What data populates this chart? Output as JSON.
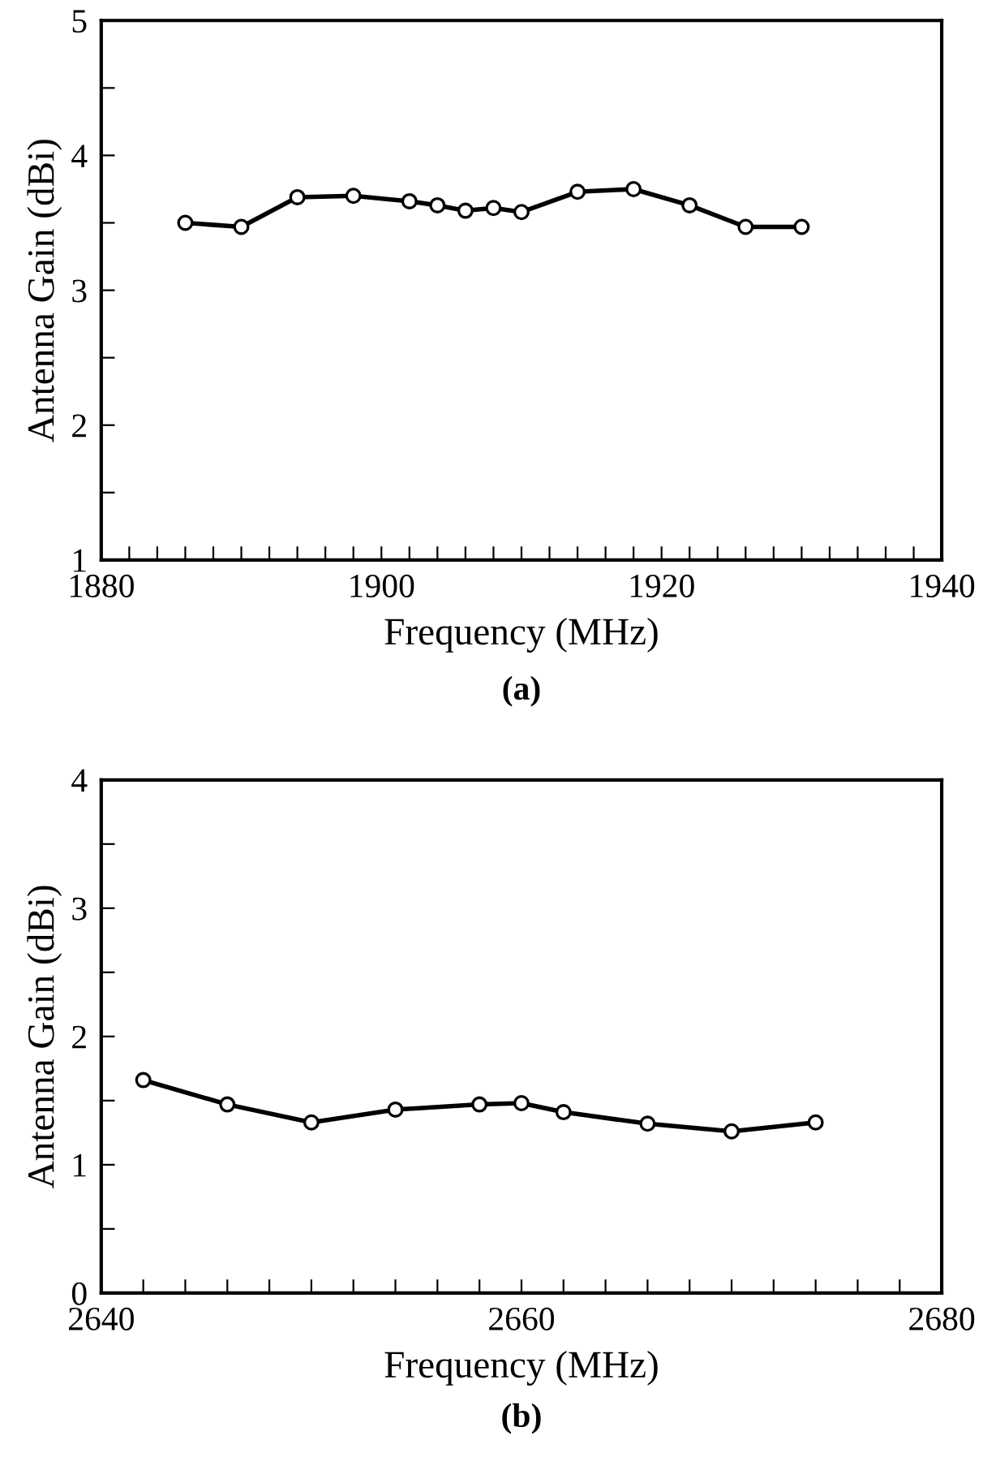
{
  "chart_data": [
    {
      "type": "line",
      "xlabel": "Frequency (MHz)",
      "ylabel": "Antenna Gain (dBi)",
      "annotations": [
        "(a)"
      ],
      "marker": "circle",
      "line_style": "solid",
      "grid": false,
      "legend": false,
      "x": [
        1886,
        1890,
        1894,
        1898,
        1902,
        1904,
        1906,
        1908,
        1910,
        1914,
        1918,
        1922,
        1926,
        1930
      ],
      "series": [
        {
          "color": "#000000",
          "values": [
            3.5,
            3.47,
            3.69,
            3.7,
            3.66,
            3.63,
            3.59,
            3.61,
            3.58,
            3.73,
            3.75,
            3.63,
            3.47,
            3.47
          ]
        }
      ],
      "xlim": [
        1880,
        1940
      ],
      "ylim": [
        1,
        5
      ],
      "xticks": [
        1880,
        {
          "value": 1882,
          "label": null
        },
        {
          "value": 1884,
          "label": null
        },
        {
          "value": 1886,
          "label": null
        },
        {
          "value": 1888,
          "label": null
        },
        {
          "value": 1890,
          "label": null
        },
        {
          "value": 1892,
          "label": null
        },
        {
          "value": 1894,
          "label": null
        },
        {
          "value": 1896,
          "label": null
        },
        {
          "value": 1898,
          "label": null
        },
        1900,
        {
          "value": 1902,
          "label": null
        },
        {
          "value": 1904,
          "label": null
        },
        {
          "value": 1906,
          "label": null
        },
        {
          "value": 1908,
          "label": null
        },
        {
          "value": 1910,
          "label": null
        },
        {
          "value": 1912,
          "label": null
        },
        {
          "value": 1914,
          "label": null
        },
        {
          "value": 1916,
          "label": null
        },
        {
          "value": 1918,
          "label": null
        },
        1920,
        {
          "value": 1922,
          "label": null
        },
        {
          "value": 1924,
          "label": null
        },
        {
          "value": 1926,
          "label": null
        },
        {
          "value": 1928,
          "label": null
        },
        {
          "value": 1930,
          "label": null
        },
        {
          "value": 1932,
          "label": null
        },
        {
          "value": 1934,
          "label": null
        },
        {
          "value": 1936,
          "label": null
        },
        {
          "value": 1938,
          "label": null
        },
        1940
      ],
      "yticks": [
        1,
        {
          "value": 1.5,
          "label": null
        },
        2,
        {
          "value": 2.5,
          "label": null
        },
        3,
        {
          "value": 3.5,
          "label": null
        },
        4,
        {
          "value": 4.5,
          "label": null
        },
        5
      ]
    },
    {
      "type": "line",
      "xlabel": "Frequency (MHz)",
      "ylabel": "Antenna Gain (dBi)",
      "annotations": [
        "(b)"
      ],
      "marker": "circle",
      "line_style": "solid",
      "grid": false,
      "legend": false,
      "x": [
        2642,
        2646,
        2650,
        2654,
        2658,
        2660,
        2662,
        2666,
        2670,
        2674
      ],
      "series": [
        {
          "color": "#000000",
          "values": [
            1.66,
            1.47,
            1.33,
            1.43,
            1.47,
            1.48,
            1.41,
            1.32,
            1.26,
            1.33
          ]
        }
      ],
      "xlim": [
        2640,
        2680
      ],
      "ylim": [
        0,
        4
      ],
      "xticks": [
        2640,
        {
          "value": 2642,
          "label": null
        },
        {
          "value": 2644,
          "label": null
        },
        {
          "value": 2646,
          "label": null
        },
        {
          "value": 2648,
          "label": null
        },
        {
          "value": 2650,
          "label": null
        },
        {
          "value": 2652,
          "label": null
        },
        {
          "value": 2654,
          "label": null
        },
        {
          "value": 2656,
          "label": null
        },
        {
          "value": 2658,
          "label": null
        },
        2660,
        {
          "value": 2662,
          "label": null
        },
        {
          "value": 2664,
          "label": null
        },
        {
          "value": 2666,
          "label": null
        },
        {
          "value": 2668,
          "label": null
        },
        {
          "value": 2670,
          "label": null
        },
        {
          "value": 2672,
          "label": null
        },
        {
          "value": 2674,
          "label": null
        },
        {
          "value": 2676,
          "label": null
        },
        {
          "value": 2678,
          "label": null
        },
        2680
      ],
      "yticks": [
        0,
        {
          "value": 0.5,
          "label": null
        },
        1,
        {
          "value": 1.5,
          "label": null
        },
        2,
        {
          "value": 2.5,
          "label": null
        },
        3,
        {
          "value": 3.5,
          "label": null
        },
        4
      ]
    }
  ]
}
